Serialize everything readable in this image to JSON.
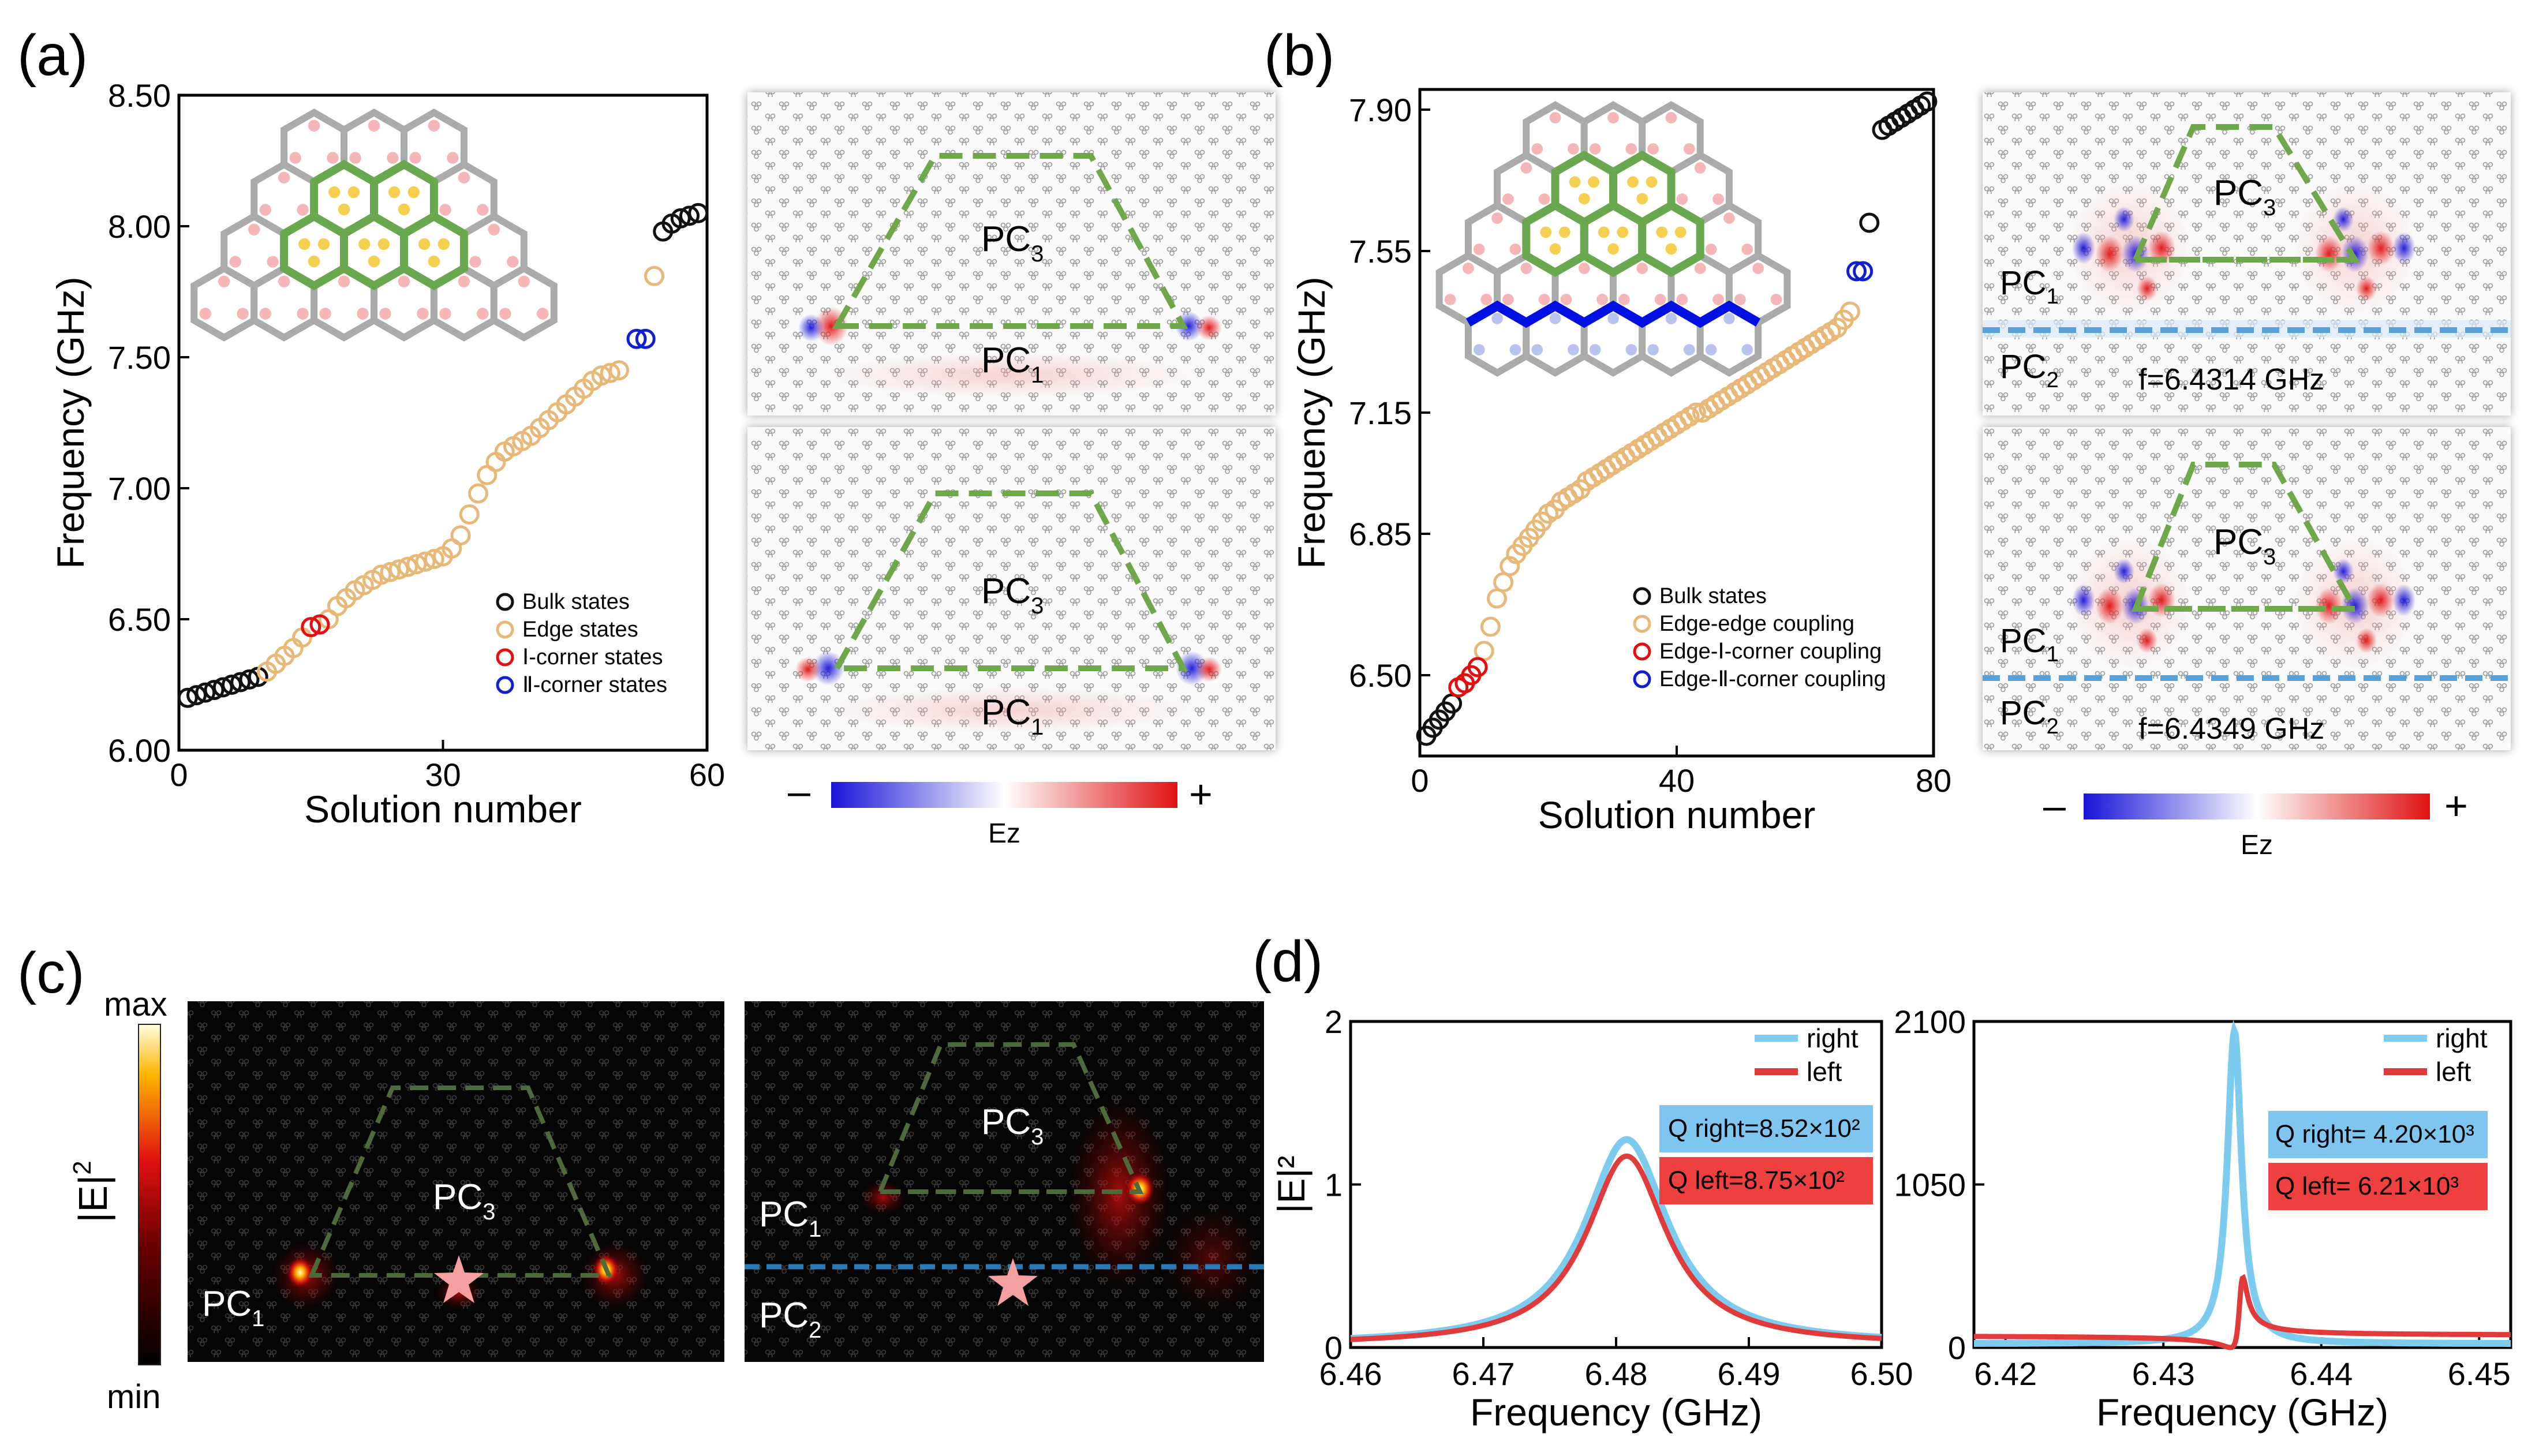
{
  "colors": {
    "bulk": "#111111",
    "edge": "#e8b878",
    "corner1": "#e01010",
    "corner2": "#1020d0",
    "right": "#7ecbf0",
    "left": "#e03a3a",
    "hexGrey": "#aaaaaa",
    "hexGreen": "#6aa84f",
    "hexBlue": "#0010e0",
    "dotPink": "#f4b6b6",
    "dotYellow": "#f5cf50",
    "dotBlue": "#b8c4ee",
    "trap": "#6ea84a",
    "qRightBg": "#7ec6f0",
    "qLeftBg": "#ef4040"
  },
  "panelA": {
    "label": "(a)",
    "legend": [
      "Bulk states",
      "Edge states",
      "Ⅰ-corner states",
      "Ⅱ-corner states"
    ],
    "fieldLabels": {
      "pc3": "PC",
      "pc3sub": "3",
      "pc1": "PC",
      "pc1sub": "1"
    },
    "colorbar": {
      "minus": "–",
      "plus": "+",
      "label": "Ez"
    }
  },
  "panelB": {
    "label": "(b)",
    "legend": [
      "Bulk states",
      "Edge-edge coupling",
      "Edge-Ⅰ-corner coupling",
      "Edge-Ⅱ-corner coupling"
    ],
    "freqTop": "f=6.4314 GHz",
    "freqBottom": "f=6.4349 GHz",
    "fieldLabels": {
      "pc1": "PC",
      "pc1sub": "1",
      "pc2": "PC",
      "pc2sub": "2",
      "pc3": "PC",
      "pc3sub": "3"
    },
    "colorbar": {
      "minus": "–",
      "plus": "+",
      "label": "Ez"
    }
  },
  "panelC": {
    "label": "(c)",
    "colorbar": {
      "max": "max",
      "min": "min",
      "label": "|E|",
      "labelSup": "2"
    },
    "left": {
      "pc3": "PC",
      "pc3sub": "3",
      "pc1": "PC",
      "pc1sub": "1"
    },
    "right": {
      "pc3": "PC",
      "pc3sub": "3",
      "pc1": "PC",
      "pc1sub": "1",
      "pc2": "PC",
      "pc2sub": "2"
    }
  },
  "panelD": {
    "label": "(d)",
    "legend": [
      "right",
      "left"
    ],
    "left": {
      "qRight": "Q right=8.52×10²",
      "qLeft": "Q left=8.75×10²"
    },
    "right": {
      "qRight": "Q right= 4.20×10³",
      "qLeft": "Q left= 6.21×10³"
    }
  },
  "chart_data": [
    {
      "id": "a",
      "type": "scatter",
      "title": "",
      "xlabel": "Solution number",
      "ylabel": "Frequency (GHz)",
      "xlim": [
        0,
        60
      ],
      "ylim": [
        6.0,
        8.5
      ],
      "xticks": [
        0,
        30,
        60
      ],
      "yticks": [
        6.0,
        6.5,
        7.0,
        7.5,
        8.0,
        8.5
      ],
      "xtickLabels": [
        "0",
        "30",
        "60"
      ],
      "ytickLabels": [
        "6.00",
        "6.50",
        "7.00",
        "7.50",
        "8.00",
        "8.50"
      ],
      "series": [
        {
          "name": "Bulk states",
          "x": [
            1,
            2,
            3,
            4,
            5,
            6,
            7,
            8,
            9,
            55,
            56,
            57,
            58,
            59
          ],
          "y": [
            6.2,
            6.21,
            6.22,
            6.23,
            6.24,
            6.25,
            6.26,
            6.27,
            6.28,
            7.98,
            8.01,
            8.03,
            8.04,
            8.05
          ]
        },
        {
          "name": "Edge states",
          "x": [
            10,
            11,
            12,
            13,
            14,
            17,
            18,
            19,
            20,
            21,
            22,
            23,
            24,
            25,
            26,
            27,
            28,
            29,
            30,
            31,
            32,
            33,
            34,
            35,
            36,
            37,
            38,
            39,
            40,
            41,
            42,
            43,
            44,
            45,
            46,
            47,
            48,
            49,
            50,
            54
          ],
          "y": [
            6.3,
            6.33,
            6.36,
            6.39,
            6.43,
            6.5,
            6.55,
            6.58,
            6.61,
            6.63,
            6.65,
            6.67,
            6.68,
            6.69,
            6.7,
            6.71,
            6.72,
            6.73,
            6.74,
            6.77,
            6.82,
            6.9,
            6.98,
            7.05,
            7.1,
            7.14,
            7.16,
            7.18,
            7.2,
            7.23,
            7.26,
            7.29,
            7.32,
            7.35,
            7.38,
            7.41,
            7.43,
            7.44,
            7.45,
            7.81
          ]
        },
        {
          "name": "Ⅰ-corner states",
          "x": [
            15,
            16
          ],
          "y": [
            6.47,
            6.48
          ]
        },
        {
          "name": "Ⅱ-corner states",
          "x": [
            52,
            53
          ],
          "y": [
            7.57,
            7.57
          ]
        }
      ]
    },
    {
      "id": "b",
      "type": "scatter",
      "title": "",
      "xlabel": "Solution number",
      "ylabel": "Frequency (GHz)",
      "xlim": [
        0,
        80
      ],
      "ylim": [
        6.3,
        7.95
      ],
      "xticks": [
        0,
        40,
        80
      ],
      "yticks": [
        6.5,
        6.85,
        7.15,
        7.55,
        7.9
      ],
      "xtickLabels": [
        "0",
        "40",
        "80"
      ],
      "ytickLabels": [
        "6.50",
        "6.85",
        "7.15",
        "7.55",
        "7.90"
      ],
      "series": [
        {
          "name": "Bulk states",
          "x": [
            1,
            2,
            3,
            4,
            5,
            70,
            72,
            73,
            74,
            75,
            76,
            77,
            78,
            79
          ],
          "y": [
            6.35,
            6.37,
            6.39,
            6.41,
            6.43,
            7.62,
            7.85,
            7.86,
            7.87,
            7.88,
            7.89,
            7.9,
            7.91,
            7.92
          ]
        },
        {
          "name": "Edge-edge coupling",
          "x": [
            10,
            11,
            12,
            13,
            14,
            15,
            16,
            17,
            18,
            19,
            20,
            21,
            22,
            23,
            24,
            25,
            26,
            27,
            28,
            29,
            30,
            31,
            32,
            33,
            34,
            35,
            36,
            37,
            38,
            39,
            40,
            41,
            42,
            43,
            44,
            45,
            46,
            47,
            48,
            49,
            50,
            51,
            52,
            53,
            54,
            55,
            56,
            57,
            58,
            59,
            60,
            61,
            62,
            63,
            64,
            65,
            66,
            67
          ],
          "y": [
            6.56,
            6.62,
            6.69,
            6.73,
            6.77,
            6.8,
            6.82,
            6.84,
            6.86,
            6.88,
            6.9,
            6.91,
            6.93,
            6.94,
            6.95,
            6.96,
            6.98,
            6.99,
            7.0,
            7.01,
            7.02,
            7.03,
            7.04,
            7.05,
            7.06,
            7.07,
            7.08,
            7.09,
            7.1,
            7.11,
            7.12,
            7.13,
            7.14,
            7.15,
            7.15,
            7.16,
            7.17,
            7.18,
            7.19,
            7.2,
            7.21,
            7.22,
            7.23,
            7.24,
            7.25,
            7.26,
            7.27,
            7.28,
            7.29,
            7.3,
            7.31,
            7.32,
            7.33,
            7.34,
            7.35,
            7.36,
            7.38,
            7.4
          ]
        },
        {
          "name": "Edge-Ⅰ-corner coupling",
          "x": [
            6,
            7,
            8,
            9
          ],
          "y": [
            6.47,
            6.48,
            6.5,
            6.52
          ]
        },
        {
          "name": "Edge-Ⅱ-corner coupling",
          "x": [
            68,
            69
          ],
          "y": [
            7.5,
            7.5
          ]
        }
      ]
    },
    {
      "id": "d-left",
      "type": "line",
      "title": "",
      "xlabel": "Frequency (GHz)",
      "ylabel": "|E|²",
      "xlim": [
        6.46,
        6.5
      ],
      "ylim": [
        0,
        2
      ],
      "xticks": [
        6.46,
        6.47,
        6.48,
        6.49,
        6.5
      ],
      "yticks": [
        0,
        1,
        2
      ],
      "xtickLabels": [
        "6.46",
        "6.47",
        "6.48",
        "6.49",
        "6.50"
      ],
      "ytickLabels": [
        "0",
        "1",
        "2"
      ],
      "series": [
        {
          "name": "right",
          "shape": "lorentzian",
          "center": 6.4808,
          "peak": 1.26,
          "hwhm": 0.0038
        },
        {
          "name": "left",
          "shape": "lorentzian",
          "center": 6.4808,
          "peak": 1.16,
          "hwhm": 0.0037
        }
      ]
    },
    {
      "id": "d-right",
      "type": "line",
      "title": "",
      "xlabel": "Frequency (GHz)",
      "ylabel": "",
      "xlim": [
        6.418,
        6.452
      ],
      "ylim": [
        0,
        2100
      ],
      "xticks": [
        6.42,
        6.43,
        6.44,
        6.45
      ],
      "yticks": [
        0,
        1050,
        2100
      ],
      "xtickLabels": [
        "6.42",
        "6.43",
        "6.44",
        "6.45"
      ],
      "ytickLabels": [
        "0",
        "1050",
        "2100"
      ],
      "series": [
        {
          "name": "right",
          "shape": "lorentzian",
          "center": 6.4345,
          "peak": 2010,
          "hwhm": 0.00055
        },
        {
          "name": "left",
          "shape": "fano",
          "center": 6.4349,
          "peak": 450,
          "hwhm": 0.0003
        }
      ]
    }
  ]
}
